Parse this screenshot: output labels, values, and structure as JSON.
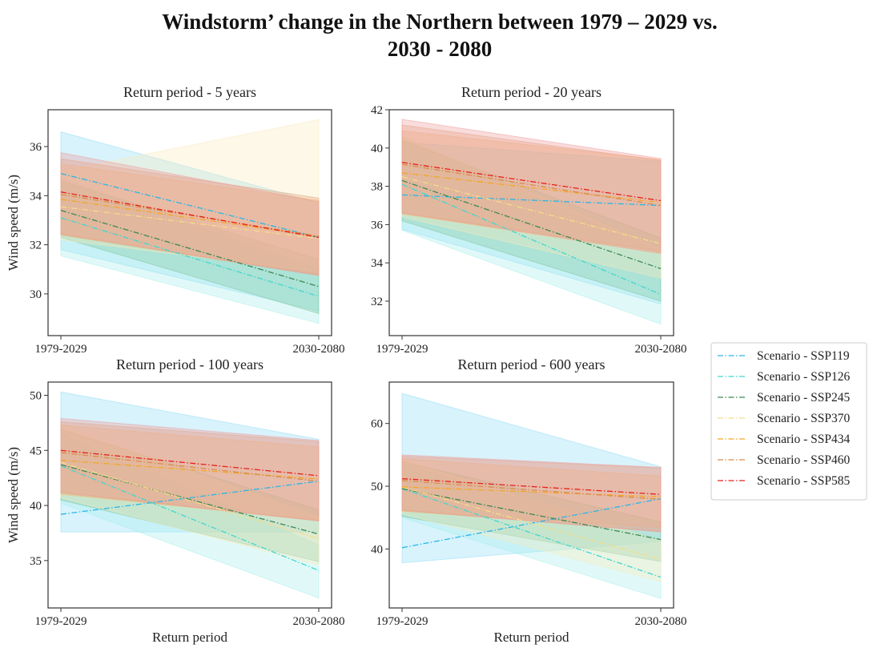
{
  "figure": {
    "title_line1": "Windstorm’ change in the Northern between 1979 – 2029 vs.",
    "title_line2": "2030 - 2080"
  },
  "chart_data": {
    "type": "line",
    "title": "Windstorm’ change in the Northern between 1979 – 2029 vs. 2030 - 2080",
    "categories": [
      "1979-2029",
      "2030-2080"
    ],
    "xlabel": "Return period",
    "ylabel": "Wind speed (m/s)",
    "legend": {
      "placement": "right",
      "framed": true
    },
    "series_styles": [
      {
        "name": "Scenario - SSP119",
        "color": "#29b6e8",
        "band": "#8fdcf7"
      },
      {
        "name": "Scenario - SSP126",
        "color": "#40d8d0",
        "band": "#a6efea"
      },
      {
        "name": "Scenario - SSP245",
        "color": "#3a8a55",
        "band": "#7fc59a"
      },
      {
        "name": "Scenario - SSP370",
        "color": "#f5dc8a",
        "band": "#f8ecbc"
      },
      {
        "name": "Scenario - SSP434",
        "color": "#f5a623",
        "band": "#f7c27a"
      },
      {
        "name": "Scenario - SSP460",
        "color": "#d98c4a",
        "band": "#e3a77d"
      },
      {
        "name": "Scenario - SSP585",
        "color": "#e8201a",
        "band": "#ef9a9a"
      }
    ],
    "panels": [
      {
        "title": "Return period - 5 years",
        "ylim": [
          28.3,
          37.5
        ],
        "yticks": [
          30,
          32,
          34,
          36
        ],
        "show_ylabel": true,
        "show_xlabel": false,
        "series": [
          {
            "name": "Scenario - SSP119",
            "values": [
              34.9,
              32.3
            ],
            "lower": [
              31.8,
              29.3
            ],
            "upper": [
              36.6,
              33.7
            ]
          },
          {
            "name": "Scenario - SSP126",
            "values": [
              33.1,
              29.9
            ],
            "lower": [
              31.55,
              28.8
            ],
            "upper": [
              34.7,
              31.0
            ]
          },
          {
            "name": "Scenario - SSP245",
            "values": [
              33.4,
              30.3
            ],
            "lower": [
              32.3,
              29.2
            ],
            "upper": [
              34.6,
              31.4
            ]
          },
          {
            "name": "Scenario - SSP370",
            "values": [
              33.55,
              32.25
            ],
            "lower": [
              32.2,
              30.9
            ],
            "upper": [
              35.0,
              37.1
            ]
          },
          {
            "name": "Scenario - SSP434",
            "values": [
              33.85,
              32.35
            ],
            "lower": [
              32.4,
              30.8
            ],
            "upper": [
              35.3,
              33.8
            ]
          },
          {
            "name": "Scenario - SSP460",
            "values": [
              34.05,
              32.35
            ],
            "lower": [
              32.4,
              30.75
            ],
            "upper": [
              35.5,
              33.9
            ]
          },
          {
            "name": "Scenario - SSP585",
            "values": [
              34.15,
              32.3
            ],
            "lower": [
              32.45,
              30.75
            ],
            "upper": [
              35.75,
              33.75
            ]
          }
        ]
      },
      {
        "title": "Return period - 20 years",
        "ylim": [
          30.2,
          42.0
        ],
        "yticks": [
          32,
          34,
          36,
          38,
          40,
          42
        ],
        "show_ylabel": false,
        "show_xlabel": false,
        "series": [
          {
            "name": "Scenario - SSP119",
            "values": [
              37.55,
              37.0
            ],
            "lower": [
              35.75,
              31.85
            ],
            "upper": [
              40.3,
              39.3
            ]
          },
          {
            "name": "Scenario - SSP126",
            "values": [
              38.1,
              32.35
            ],
            "lower": [
              35.7,
              30.8
            ],
            "upper": [
              40.6,
              34.5
            ]
          },
          {
            "name": "Scenario - SSP245",
            "values": [
              38.3,
              33.7
            ],
            "lower": [
              36.2,
              32.0
            ],
            "upper": [
              40.4,
              35.3
            ]
          },
          {
            "name": "Scenario - SSP370",
            "values": [
              38.5,
              35.0
            ],
            "lower": [
              36.4,
              33.2
            ],
            "upper": [
              40.6,
              34.7
            ]
          },
          {
            "name": "Scenario - SSP434",
            "values": [
              38.7,
              37.15
            ],
            "lower": [
              36.55,
              34.5
            ],
            "upper": [
              40.9,
              39.4
            ]
          },
          {
            "name": "Scenario - SSP460",
            "values": [
              39.15,
              37.0
            ],
            "lower": [
              36.6,
              34.6
            ],
            "upper": [
              41.2,
              39.35
            ]
          },
          {
            "name": "Scenario - SSP585",
            "values": [
              39.25,
              37.25
            ],
            "lower": [
              36.6,
              34.5
            ],
            "upper": [
              41.5,
              39.45
            ]
          }
        ]
      },
      {
        "title": "Return period - 100 years",
        "ylim": [
          30.7,
          51.2
        ],
        "yticks": [
          35,
          40,
          45,
          50
        ],
        "show_ylabel": true,
        "show_xlabel": true,
        "series": [
          {
            "name": "Scenario - SSP119",
            "values": [
              39.2,
              42.2
            ],
            "lower": [
              37.6,
              37.6
            ],
            "upper": [
              50.3,
              46.0
            ]
          },
          {
            "name": "Scenario - SSP126",
            "values": [
              43.6,
              34.1
            ],
            "lower": [
              40.2,
              31.6
            ],
            "upper": [
              46.5,
              36.4
            ]
          },
          {
            "name": "Scenario - SSP245",
            "values": [
              43.7,
              37.4
            ],
            "lower": [
              40.5,
              34.9
            ],
            "upper": [
              46.9,
              39.6
            ]
          },
          {
            "name": "Scenario - SSP370",
            "values": [
              43.9,
              37.0
            ],
            "lower": [
              40.7,
              34.6
            ],
            "upper": [
              47.2,
              39.0
            ]
          },
          {
            "name": "Scenario - SSP434",
            "values": [
              44.1,
              42.4
            ],
            "lower": [
              41.0,
              38.7
            ],
            "upper": [
              47.3,
              45.3
            ]
          },
          {
            "name": "Scenario - SSP460",
            "values": [
              44.8,
              42.2
            ],
            "lower": [
              41.1,
              38.6
            ],
            "upper": [
              47.6,
              45.8
            ]
          },
          {
            "name": "Scenario - SSP585",
            "values": [
              45.0,
              42.7
            ],
            "lower": [
              41.2,
              38.6
            ],
            "upper": [
              47.9,
              45.9
            ]
          }
        ]
      },
      {
        "title": "Return period - 600 years",
        "ylim": [
          30.6,
          66.6
        ],
        "yticks": [
          40,
          50,
          60
        ],
        "show_ylabel": false,
        "show_xlabel": true,
        "series": [
          {
            "name": "Scenario - SSP119",
            "values": [
              40.2,
              48.0
            ],
            "lower": [
              37.8,
              41.2
            ],
            "upper": [
              64.8,
              53.1
            ]
          },
          {
            "name": "Scenario - SSP126",
            "values": [
              49.6,
              35.5
            ],
            "lower": [
              45.0,
              32.1
            ],
            "upper": [
              53.5,
              41.5
            ]
          },
          {
            "name": "Scenario - SSP245",
            "values": [
              49.6,
              41.5
            ],
            "lower": [
              45.2,
              38.0
            ],
            "upper": [
              53.9,
              44.3
            ]
          },
          {
            "name": "Scenario - SSP370",
            "values": [
              49.9,
              38.3
            ],
            "lower": [
              45.6,
              34.8
            ],
            "upper": [
              54.2,
              41.3
            ]
          },
          {
            "name": "Scenario - SSP434",
            "values": [
              49.9,
              48.3
            ],
            "lower": [
              46.0,
              43.4
            ],
            "upper": [
              54.4,
              51.6
            ]
          },
          {
            "name": "Scenario - SSP460",
            "values": [
              50.9,
              47.9
            ],
            "lower": [
              46.1,
              42.8
            ],
            "upper": [
              54.8,
              52.9
            ]
          },
          {
            "name": "Scenario - SSP585",
            "values": [
              51.2,
              48.7
            ],
            "lower": [
              46.2,
              42.7
            ],
            "upper": [
              55.0,
              53.0
            ]
          }
        ]
      }
    ]
  }
}
